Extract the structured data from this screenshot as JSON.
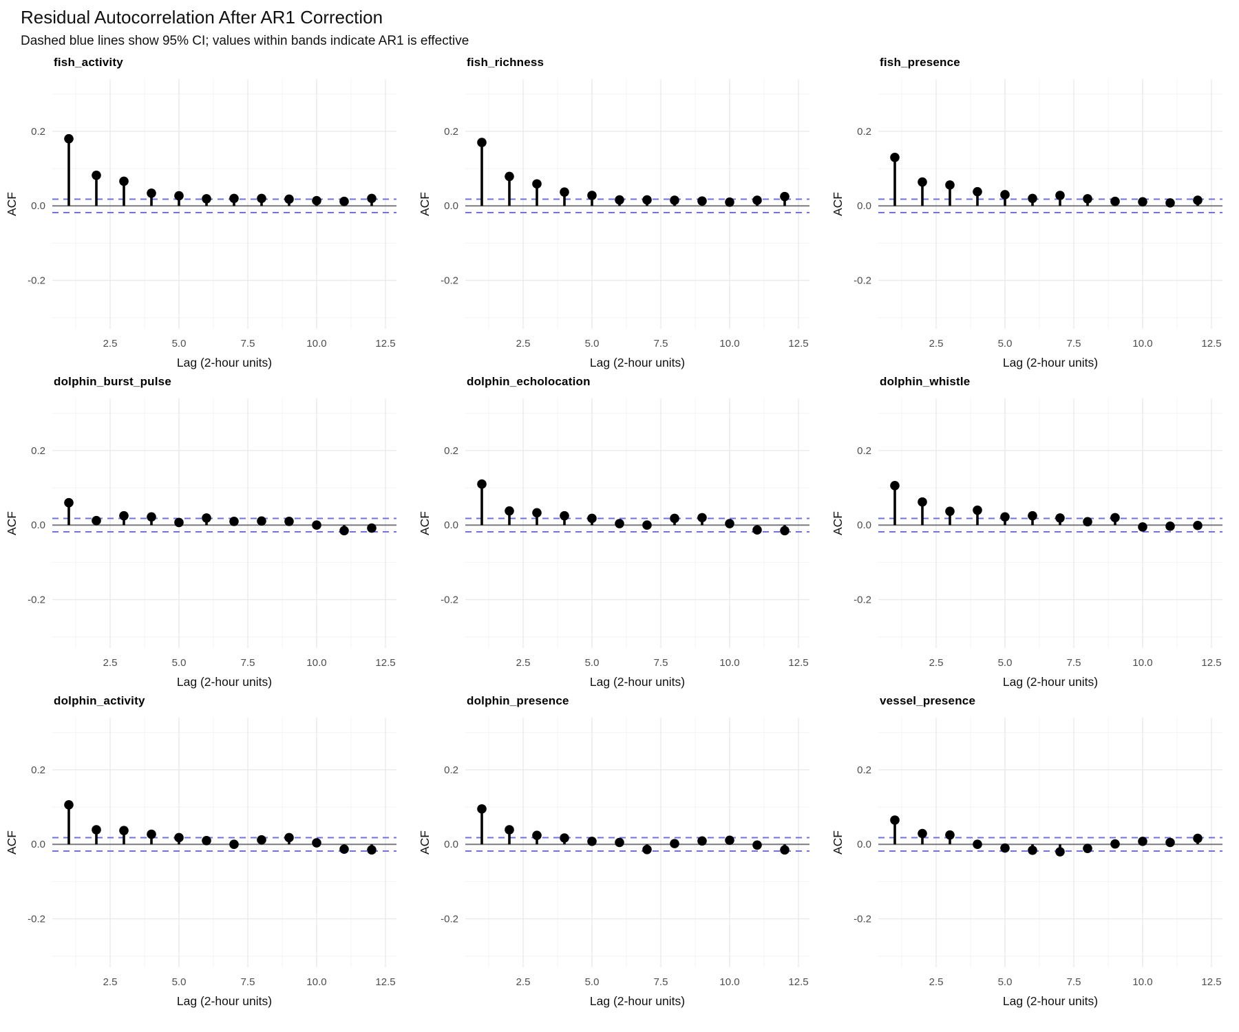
{
  "header": {
    "title": "Residual Autocorrelation After AR1 Correction",
    "subtitle": "Dashed blue lines show 95% CI; values within bands indicate AR1 is effective"
  },
  "chart_data": {
    "type": "scatter",
    "variant": "acf-lollipop-stem-plot",
    "layout": "3x3-facet-grid",
    "x": [
      1,
      2,
      3,
      4,
      5,
      6,
      7,
      8,
      9,
      10,
      11,
      12
    ],
    "xlabel": "Lag (2-hour units)",
    "ylabel": "ACF",
    "x_ticks": [
      2.5,
      5.0,
      7.5,
      10.0,
      12.5
    ],
    "y_ticks": [
      0.2,
      0.0,
      -0.2
    ],
    "xlim": [
      0.4,
      12.9
    ],
    "ylim": [
      -0.33,
      0.34
    ],
    "grid": true,
    "ci_upper": 0.018,
    "ci_lower": -0.018,
    "panels": [
      {
        "title": "fish_activity",
        "values": [
          0.18,
          0.082,
          0.066,
          0.034,
          0.027,
          0.019,
          0.02,
          0.02,
          0.018,
          0.014,
          0.012,
          0.02
        ]
      },
      {
        "title": "fish_richness",
        "values": [
          0.17,
          0.079,
          0.059,
          0.037,
          0.028,
          0.016,
          0.016,
          0.015,
          0.013,
          0.01,
          0.015,
          0.025
        ]
      },
      {
        "title": "fish_presence",
        "values": [
          0.13,
          0.064,
          0.056,
          0.038,
          0.03,
          0.02,
          0.028,
          0.019,
          0.012,
          0.011,
          0.008,
          0.015
        ]
      },
      {
        "title": "dolphin_burst_pulse",
        "values": [
          0.06,
          0.012,
          0.025,
          0.022,
          0.007,
          0.019,
          0.01,
          0.011,
          0.01,
          0.0,
          -0.015,
          -0.008
        ]
      },
      {
        "title": "dolphin_echolocation",
        "values": [
          0.11,
          0.038,
          0.033,
          0.025,
          0.018,
          0.004,
          0.0,
          0.018,
          0.02,
          0.004,
          -0.013,
          -0.015
        ]
      },
      {
        "title": "dolphin_whistle",
        "values": [
          0.106,
          0.062,
          0.037,
          0.04,
          0.022,
          0.025,
          0.019,
          0.009,
          0.02,
          -0.005,
          -0.003,
          -0.001
        ]
      },
      {
        "title": "dolphin_activity",
        "values": [
          0.106,
          0.039,
          0.037,
          0.027,
          0.018,
          0.01,
          0.0,
          0.012,
          0.018,
          0.004,
          -0.013,
          -0.015
        ]
      },
      {
        "title": "dolphin_presence",
        "values": [
          0.095,
          0.039,
          0.024,
          0.017,
          0.008,
          0.005,
          -0.014,
          0.002,
          0.009,
          0.011,
          -0.002,
          -0.015
        ]
      },
      {
        "title": "vessel_presence",
        "values": [
          0.065,
          0.029,
          0.025,
          0.0,
          -0.01,
          -0.016,
          -0.02,
          -0.011,
          0.001,
          0.008,
          0.005,
          0.016
        ]
      }
    ]
  },
  "colors": {
    "ci_dashed": "#7070e0",
    "zero_line": "#7a7a7a",
    "point": "#000000",
    "grid_major": "#e9e9e9",
    "grid_minor": "#f4f4f4",
    "tick_label": "#4d4d4d",
    "axis_title": "#111111"
  }
}
